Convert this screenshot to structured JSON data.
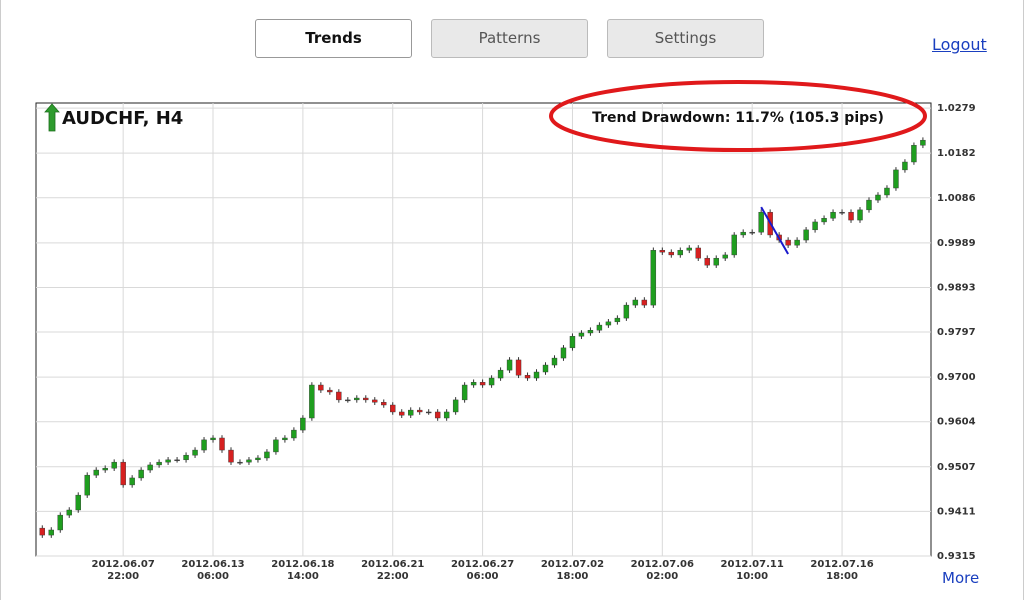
{
  "nav": {
    "tabs": [
      "Trends",
      "Patterns",
      "Settings"
    ],
    "logout": "Logout"
  },
  "more": "More",
  "chart_data": {
    "type": "candlestick",
    "title": "AUDCHF, H4",
    "annotation": "Trend Drawdown: 11.7% (105.3 pips)",
    "up_color": "#1f9e1f",
    "down_color": "#d62020",
    "grid": true,
    "ylim": [
      0.9315,
      1.029
    ],
    "yticks": [
      0.9315,
      0.9411,
      0.9507,
      0.9604,
      {
        "value": 0.97,
        "label": "0.9700"
      },
      0.9797,
      0.9893,
      0.9989,
      1.0086,
      1.0182,
      1.0279
    ],
    "xlim": [
      -0.7,
      98.9
    ],
    "xticks": [
      {
        "value": 9,
        "label": "2012.06.07\n22:00"
      },
      {
        "value": 19,
        "label": "2012.06.13\n06:00"
      },
      {
        "value": 29,
        "label": "2012.06.18\n14:00"
      },
      {
        "value": 39,
        "label": "2012.06.21\n22:00"
      },
      {
        "value": 49,
        "label": "2012.06.27\n06:00"
      },
      {
        "value": 59,
        "label": "2012.07.02\n18:00"
      },
      {
        "value": 69,
        "label": "2012.07.06\n02:00"
      },
      {
        "value": 79,
        "label": "2012.07.11\n10:00"
      },
      {
        "value": 89,
        "label": "2012.07.16\n18:00"
      }
    ],
    "open": [
      0.9375,
      0.936,
      0.9371,
      0.9403,
      0.9414,
      0.9446,
      0.9489,
      0.95,
      0.9504,
      0.9517,
      0.9468,
      0.9483,
      0.95,
      0.9511,
      0.9517,
      0.9522,
      0.9522,
      0.9532,
      0.9543,
      0.9565,
      0.9569,
      0.9543,
      0.9517,
      0.9517,
      0.9522,
      0.9526,
      0.9539,
      0.9565,
      0.9569,
      0.9586,
      0.9612,
      0.9683,
      0.9672,
      0.9668,
      0.9651,
      0.9651,
      0.9655,
      0.9651,
      0.9646,
      0.964,
      0.9625,
      0.9618,
      0.9629,
      0.9625,
      0.9625,
      0.9612,
      0.9625,
      0.9651,
      0.9683,
      0.9689,
      0.9683,
      0.9698,
      0.9715,
      0.9737,
      0.9704,
      0.9698,
      0.9711,
      0.9726,
      0.9741,
      0.9763,
      0.9788,
      0.9795,
      0.9801,
      0.9812,
      0.9819,
      0.9827,
      0.9855,
      0.9866,
      0.9855,
      0.9973,
      0.9969,
      0.9963,
      0.9973,
      0.9978,
      0.9956,
      0.9941,
      0.9956,
      0.9963,
      1.0006,
      1.0012,
      1.0012,
      1.0055,
      1.0006,
      0.9995,
      0.9984,
      0.9995,
      1.0017,
      1.0034,
      1.0042,
      1.0055,
      1.0055,
      1.0038,
      1.006,
      1.0081,
      1.0092,
      1.0107,
      1.0146,
      1.0163,
      1.0199
    ],
    "high": [
      0.9381,
      0.9377,
      0.9409,
      0.942,
      0.9452,
      0.9495,
      0.9506,
      0.951,
      0.9523,
      0.9523,
      0.9489,
      0.9506,
      0.9517,
      0.9523,
      0.9528,
      0.9528,
      0.9538,
      0.9549,
      0.9571,
      0.9575,
      0.9575,
      0.9549,
      0.9523,
      0.9528,
      0.9532,
      0.9545,
      0.9571,
      0.9575,
      0.9592,
      0.9618,
      0.9689,
      0.9689,
      0.9678,
      0.9674,
      0.9657,
      0.9661,
      0.9661,
      0.9657,
      0.9652,
      0.9646,
      0.9631,
      0.9635,
      0.9635,
      0.9631,
      0.9631,
      0.9631,
      0.9657,
      0.9689,
      0.9695,
      0.9695,
      0.9704,
      0.9721,
      0.9743,
      0.9743,
      0.971,
      0.9717,
      0.9732,
      0.9747,
      0.9769,
      0.9794,
      0.9801,
      0.9807,
      0.9818,
      0.9825,
      0.9833,
      0.9861,
      0.9872,
      0.9872,
      0.9979,
      0.9979,
      0.9975,
      0.9979,
      0.9984,
      0.9984,
      0.9962,
      0.9962,
      0.9969,
      1.0012,
      1.0018,
      1.0018,
      1.0061,
      1.0061,
      1.0012,
      1.0001,
      1.0001,
      1.0023,
      1.004,
      1.0048,
      1.0061,
      1.0061,
      1.0061,
      1.0066,
      1.0087,
      1.0098,
      1.0113,
      1.0152,
      1.0169,
      1.0205,
      1.0216
    ],
    "low": [
      0.9354,
      0.9354,
      0.9365,
      0.9397,
      0.9408,
      0.944,
      0.9483,
      0.9494,
      0.9498,
      0.9462,
      0.9462,
      0.9477,
      0.9494,
      0.9505,
      0.9511,
      0.9516,
      0.9516,
      0.9526,
      0.9537,
      0.9559,
      0.9537,
      0.9511,
      0.9511,
      0.9511,
      0.9516,
      0.952,
      0.9533,
      0.9559,
      0.9563,
      0.958,
      0.9606,
      0.9666,
      0.9662,
      0.9645,
      0.9645,
      0.9645,
      0.9645,
      0.964,
      0.9634,
      0.9619,
      0.9612,
      0.9612,
      0.9619,
      0.9619,
      0.9606,
      0.9606,
      0.9619,
      0.9645,
      0.9677,
      0.9677,
      0.9677,
      0.9692,
      0.9709,
      0.9698,
      0.9692,
      0.9692,
      0.9705,
      0.972,
      0.9735,
      0.9757,
      0.9782,
      0.9789,
      0.9795,
      0.9806,
      0.9813,
      0.9821,
      0.9849,
      0.9849,
      0.9849,
      0.9963,
      0.9957,
      0.9957,
      0.9967,
      0.995,
      0.9935,
      0.9935,
      0.995,
      0.9957,
      1.0,
      1.0006,
      1.0006,
      1.0,
      0.9989,
      0.9978,
      0.9978,
      0.9989,
      1.0011,
      1.0028,
      1.0036,
      1.0049,
      1.0032,
      1.0032,
      1.0054,
      1.0075,
      1.0086,
      1.0101,
      1.014,
      1.0157,
      1.0193
    ],
    "close": [
      0.936,
      0.9371,
      0.9403,
      0.9414,
      0.9446,
      0.9489,
      0.95,
      0.9504,
      0.9517,
      0.9468,
      0.9483,
      0.95,
      0.9511,
      0.9517,
      0.9522,
      0.9522,
      0.9532,
      0.9543,
      0.9565,
      0.9569,
      0.9543,
      0.9517,
      0.9517,
      0.9522,
      0.9526,
      0.9539,
      0.9565,
      0.9569,
      0.9586,
      0.9612,
      0.9683,
      0.9672,
      0.9668,
      0.9651,
      0.9651,
      0.9655,
      0.9651,
      0.9646,
      0.964,
      0.9625,
      0.9618,
      0.9629,
      0.9625,
      0.9625,
      0.9612,
      0.9625,
      0.9651,
      0.9683,
      0.9689,
      0.9683,
      0.9698,
      0.9715,
      0.9737,
      0.9704,
      0.9698,
      0.9711,
      0.9726,
      0.9741,
      0.9763,
      0.9788,
      0.9795,
      0.9801,
      0.9812,
      0.9819,
      0.9827,
      0.9855,
      0.9866,
      0.9855,
      0.9973,
      0.9969,
      0.9963,
      0.9973,
      0.9978,
      0.9956,
      0.9941,
      0.9956,
      0.9963,
      1.0006,
      1.0012,
      1.0012,
      1.0055,
      1.0006,
      0.9995,
      0.9984,
      0.9995,
      1.0017,
      1.0034,
      1.0042,
      1.0055,
      1.0055,
      1.0038,
      1.006,
      1.0081,
      1.0092,
      1.0107,
      1.0146,
      1.0163,
      1.0199,
      1.021
    ],
    "trend_line": {
      "x": [
        80,
        83
      ],
      "y": [
        1.0066,
        0.9965
      ],
      "color": "#1a1acc"
    }
  }
}
